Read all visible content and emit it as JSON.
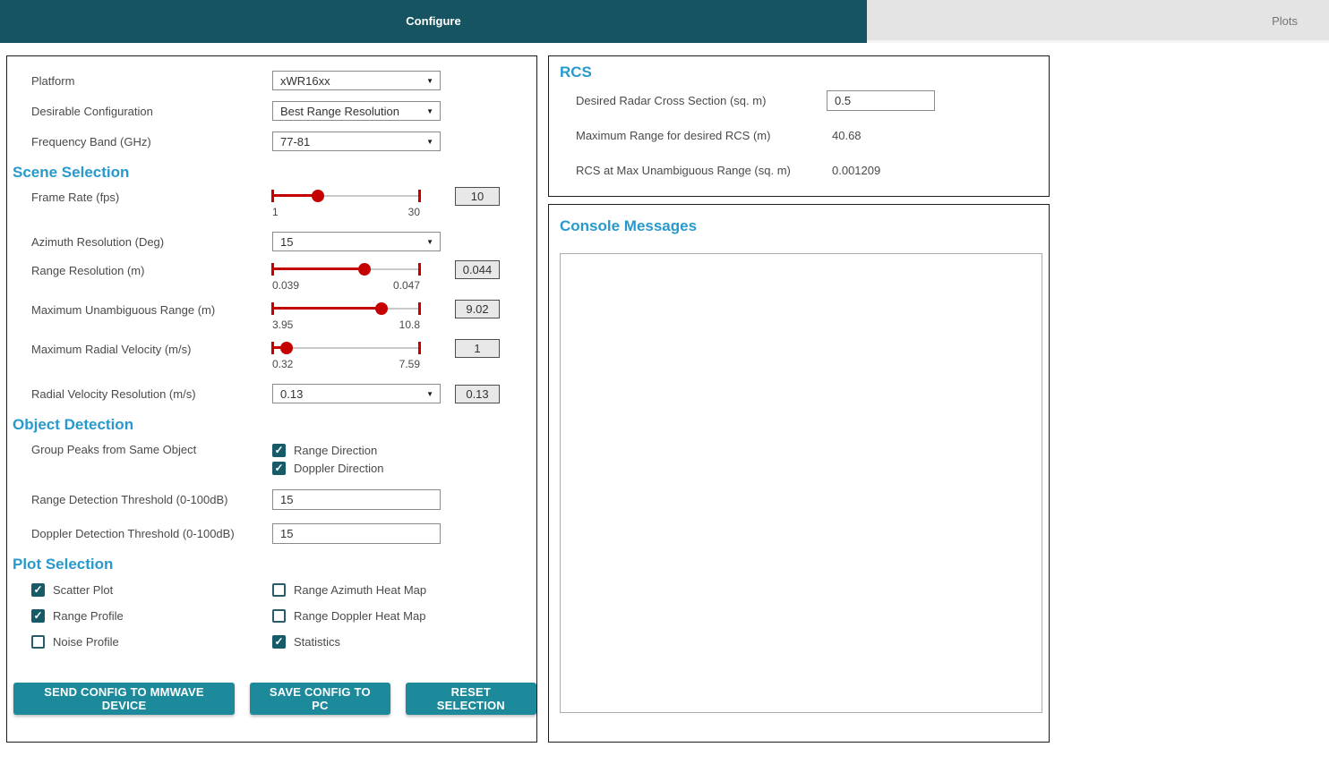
{
  "icons": {
    "dropdown_arrow": "▼",
    "checkmark": "✓"
  },
  "colors": {
    "tab_teal": "#175461",
    "button_teal": "#1d8a9b",
    "heading_blue": "#2899cc",
    "slider_red": "#c40000"
  },
  "tabs": {
    "configure": "Configure",
    "plots": "Plots"
  },
  "config": {
    "platform": {
      "label": "Platform",
      "value": "xWR16xx"
    },
    "desirable_configuration": {
      "label": "Desirable Configuration",
      "value": "Best Range Resolution"
    },
    "frequency_band": {
      "label": "Frequency Band (GHz)",
      "value": "77-81"
    },
    "scene_selection": {
      "title": "Scene Selection",
      "frame_rate": {
        "label": "Frame Rate (fps)",
        "min": "1",
        "max": "30",
        "value": "10",
        "percent": 31
      },
      "azimuth_resolution": {
        "label": "Azimuth Resolution (Deg)",
        "value": "15"
      },
      "range_resolution": {
        "label": "Range Resolution (m)",
        "min": "0.039",
        "max": "0.047",
        "value": "0.044",
        "percent": 62.5
      },
      "maximum_unambiguous_range": {
        "label": "Maximum Unambiguous Range (m)",
        "min": "3.95",
        "max": "10.8",
        "value": "9.02",
        "percent": 74
      },
      "maximum_radial_velocity": {
        "label": "Maximum Radial Velocity (m/s)",
        "min": "0.32",
        "max": "7.59",
        "value": "1",
        "percent": 9.4
      },
      "radial_velocity_resolution": {
        "label": "Radial Velocity Resolution (m/s)",
        "value": "0.13",
        "readout": "0.13"
      }
    },
    "object_detection": {
      "title": "Object Detection",
      "group_peaks": {
        "label": "Group Peaks from Same Object",
        "options": [
          {
            "label": "Range Direction",
            "checked": true
          },
          {
            "label": "Doppler Direction",
            "checked": true
          }
        ]
      },
      "range_detection_threshold": {
        "label": "Range Detection Threshold (0-100dB)",
        "value": "15"
      },
      "doppler_detection_threshold": {
        "label": "Doppler Detection Threshold (0-100dB)",
        "value": "15"
      }
    },
    "plot_selection": {
      "title": "Plot Selection",
      "options": [
        {
          "label": "Scatter Plot",
          "checked": true
        },
        {
          "label": "Range Azimuth Heat Map",
          "checked": false
        },
        {
          "label": "Range Profile",
          "checked": true
        },
        {
          "label": "Range Doppler Heat Map",
          "checked": false
        },
        {
          "label": "Noise Profile",
          "checked": false
        },
        {
          "label": "Statistics",
          "checked": true
        }
      ]
    },
    "buttons": {
      "send": "SEND CONFIG TO MMWAVE DEVICE",
      "save": "SAVE CONFIG TO PC",
      "reset": "RESET SELECTION"
    }
  },
  "rcs": {
    "title": "RCS",
    "desired_rcs": {
      "label": "Desired Radar Cross Section (sq. m)",
      "value": "0.5"
    },
    "max_range_for_rcs": {
      "label": "Maximum Range for desired RCS (m)",
      "value": "40.68"
    },
    "rcs_at_max_range": {
      "label": "RCS at Max Unambiguous Range (sq. m)",
      "value": "0.001209"
    }
  },
  "console": {
    "title": "Console Messages"
  }
}
